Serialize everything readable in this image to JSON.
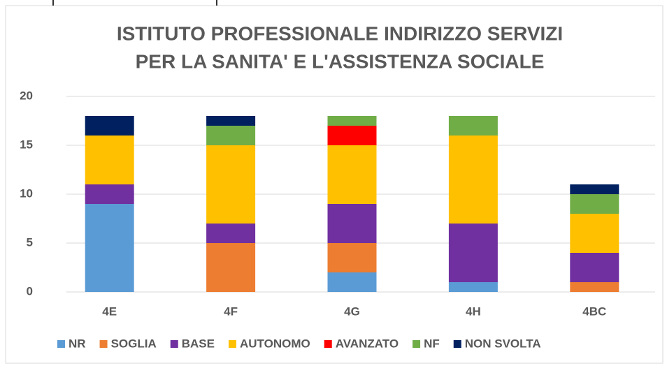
{
  "chart_data": {
    "type": "stacked_bar",
    "title": [
      "ISTITUTO PROFESSIONALE INDIRIZZO SERVIZI",
      "PER LA SANITA' E L'ASSISTENZA SOCIALE"
    ],
    "categories": [
      "4E",
      "4F",
      "4G",
      "4H",
      "4BC"
    ],
    "series": [
      {
        "name": "NR",
        "color": "#5b9bd5",
        "values": [
          9,
          0,
          2,
          1,
          0
        ]
      },
      {
        "name": "SOGLIA",
        "color": "#ed7d31",
        "values": [
          0,
          5,
          3,
          0,
          1
        ]
      },
      {
        "name": "BASE",
        "color": "#7030a0",
        "values": [
          2,
          2,
          4,
          6,
          3
        ]
      },
      {
        "name": "AUTONOMO",
        "color": "#ffc000",
        "values": [
          5,
          8,
          6,
          9,
          4
        ]
      },
      {
        "name": "AVANZATO",
        "color": "#ff0000",
        "values": [
          0,
          0,
          2,
          0,
          0
        ]
      },
      {
        "name": "NF",
        "color": "#70ad47",
        "values": [
          0,
          2,
          1,
          2,
          2
        ]
      },
      {
        "name": "NON SVOLTA",
        "color": "#002060",
        "values": [
          2,
          1,
          0,
          0,
          1
        ]
      }
    ],
    "ylim": [
      0,
      20
    ],
    "yticks": [
      0,
      5,
      10,
      15,
      20
    ],
    "grid": true,
    "legend": "bottom"
  }
}
